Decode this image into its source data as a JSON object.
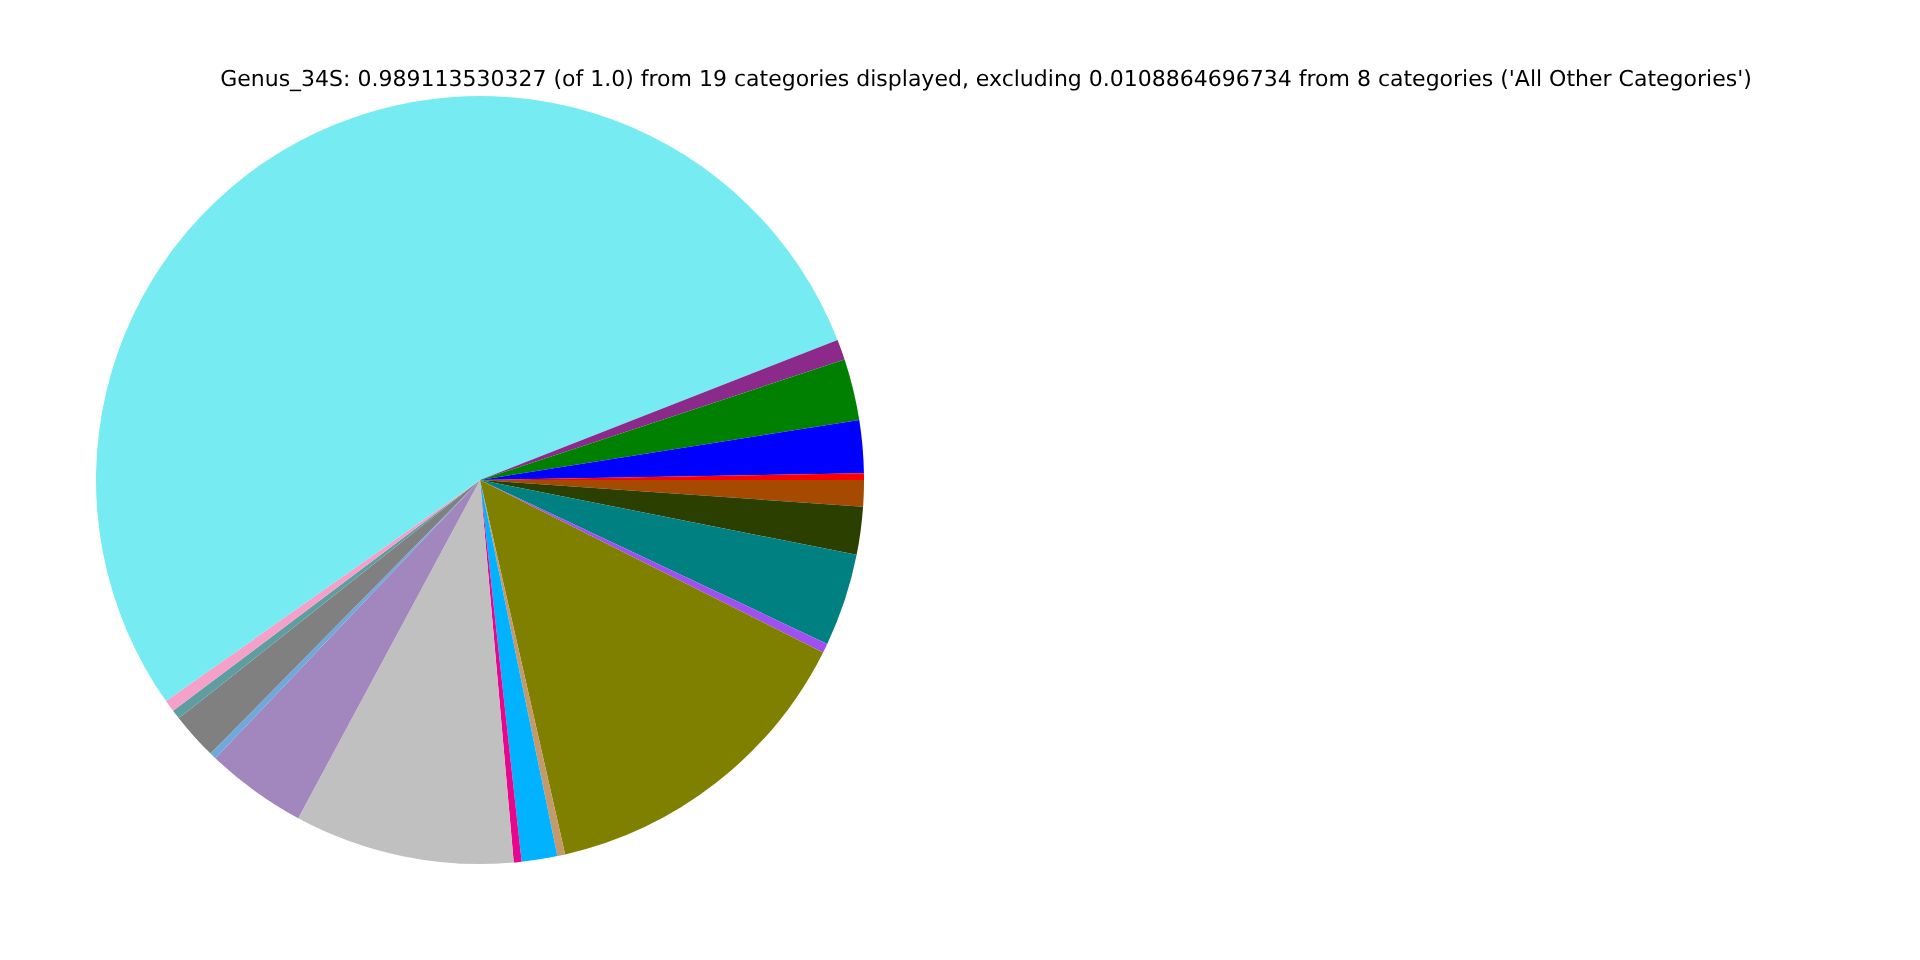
{
  "chart_data": {
    "type": "pie",
    "title": "Genus_34S: 0.989113530327 (of 1.0) from 19 categories displayed, excluding 0.0108864696734 from 8 categories ('All Other Categories')",
    "categories": [
      null,
      null,
      null,
      null,
      null,
      null,
      null,
      null,
      null,
      null,
      null,
      null,
      null,
      null,
      null,
      null,
      null,
      null,
      null
    ],
    "values": [
      1.11,
      2.01,
      3.9,
      0.39,
      14.03,
      0.33,
      1.5,
      0.33,
      9.25,
      4.25,
      0.28,
      1.97,
      0.39,
      0.5,
      53.82,
      0.86,
      2.58,
      2.22,
      0.28
    ],
    "colors": [
      "#a54a00",
      "#2b3f00",
      "#008080",
      "#a050f0",
      "#808000",
      "#c49a6c",
      "#00b2ff",
      "#e8078c",
      "#c0c0c0",
      "#a187bd",
      "#6fa8dc",
      "#808080",
      "#5f9ea0",
      "#f4a0c8",
      "#77ebf2",
      "#8b2a8b",
      "#008000",
      "#0000ff",
      "#ff0000"
    ],
    "legend": false
  }
}
